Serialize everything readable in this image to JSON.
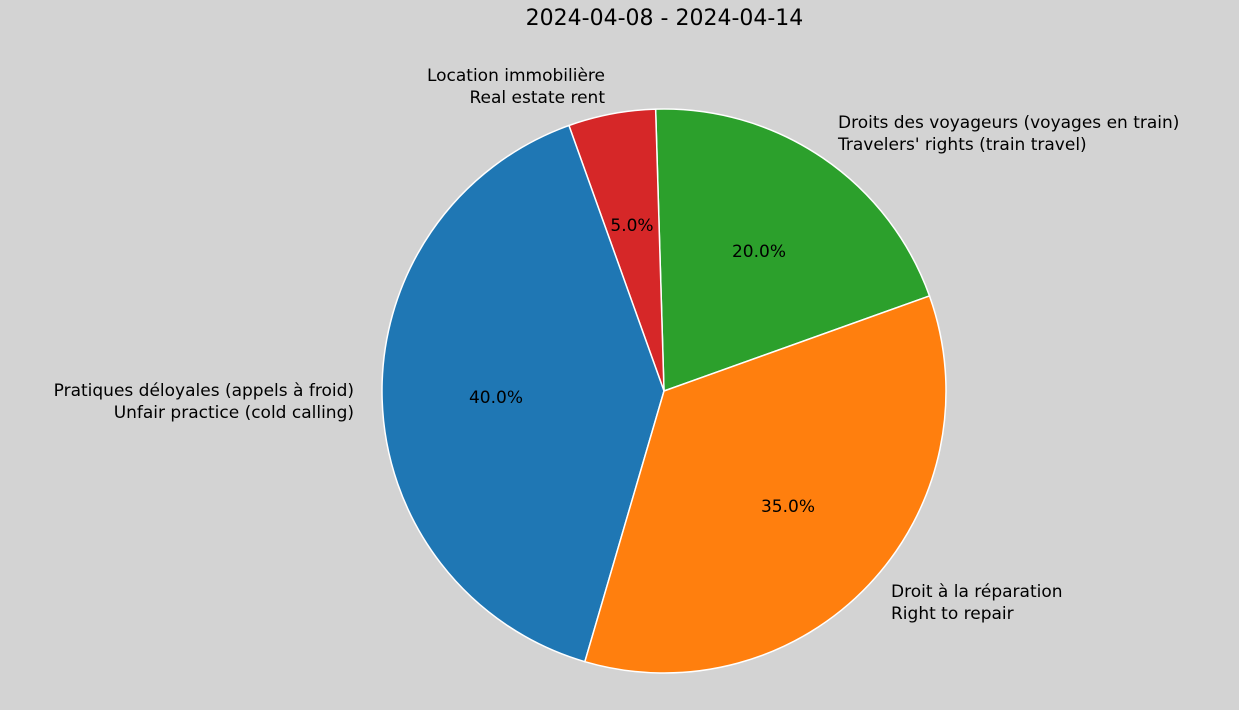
{
  "chart_data": {
    "type": "pie",
    "title": "2024-04-08 - 2024-04-14",
    "slices": [
      {
        "label_fr": "Droits des voyageurs (voyages en train)",
        "label_en": "Travelers' rights (train travel)",
        "value": 20.0,
        "pct_label": "20.0%",
        "color": "#2ca02c"
      },
      {
        "label_fr": "Location immobilière",
        "label_en": "Real estate rent",
        "value": 5.0,
        "pct_label": "5.0%",
        "color": "#d62728"
      },
      {
        "label_fr": "Pratiques déloyales (appels à froid)",
        "label_en": "Unfair practice (cold calling)",
        "value": 40.0,
        "pct_label": "40.0%",
        "color": "#1f77b4"
      },
      {
        "label_fr": "Droit à la réparation",
        "label_en": "Right to repair",
        "value": 35.0,
        "pct_label": "35.0%",
        "color": "#ff7f0e"
      }
    ],
    "background": "#d3d3d3",
    "wedge_edge_color": "#ffffff"
  }
}
